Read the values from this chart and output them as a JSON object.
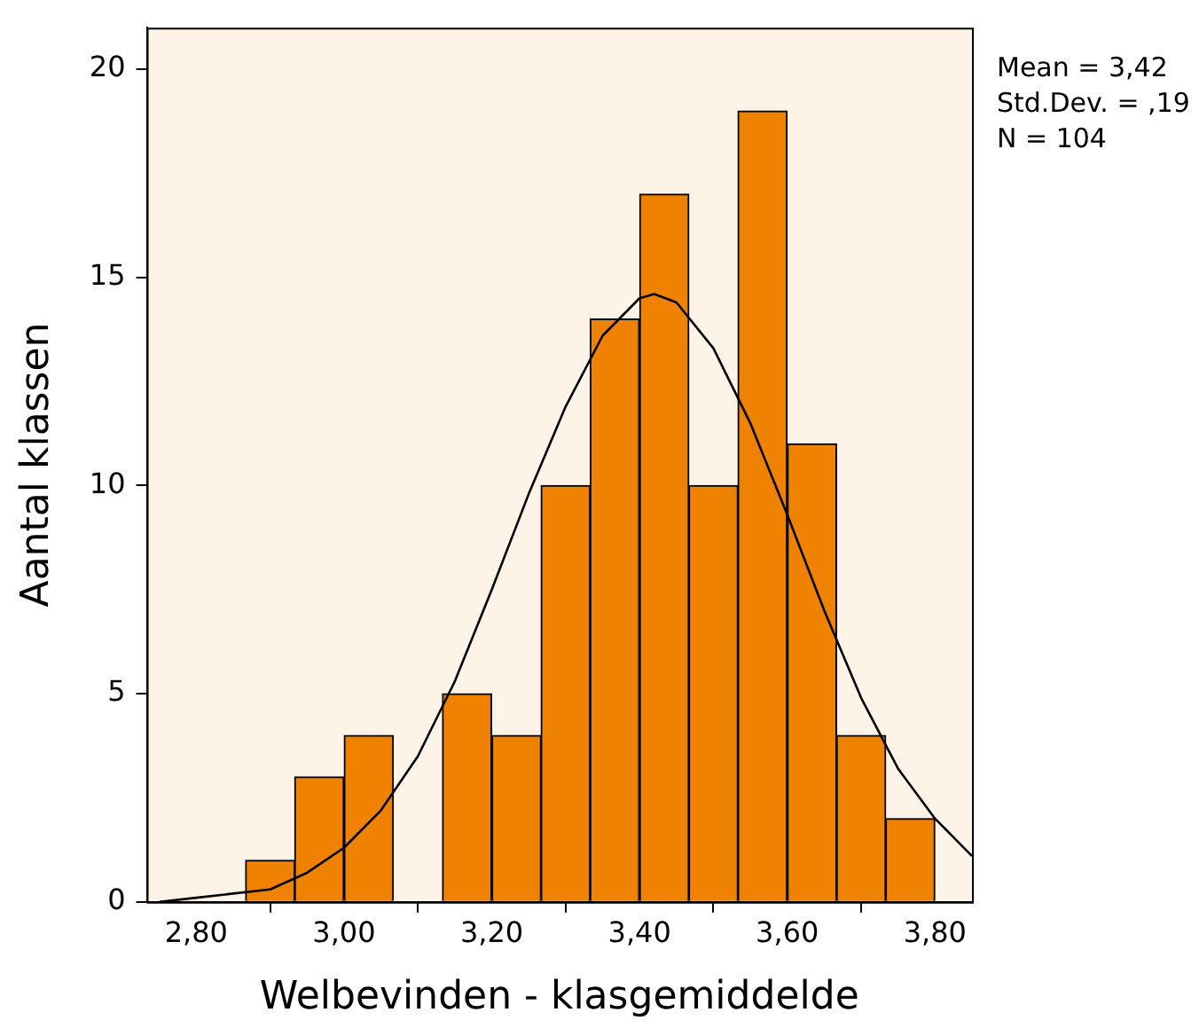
{
  "chart_data": {
    "type": "histogram",
    "xlabel": "Welbevinden - klasgemiddelde",
    "ylabel": "Aantal klassen",
    "bins": [
      2.867,
      2.933,
      3.0,
      3.067,
      3.133,
      3.2,
      3.267,
      3.333,
      3.4,
      3.467,
      3.533,
      3.6,
      3.667,
      3.733,
      3.8
    ],
    "values": [
      1,
      3,
      4,
      0,
      5,
      4,
      10,
      14,
      17,
      10,
      19,
      11,
      4,
      2
    ],
    "color": "#ef8200",
    "series": [
      {
        "type": "line",
        "color": "#000000",
        "x": [
          2.75,
          2.8,
          2.85,
          2.9,
          2.95,
          3.0,
          3.05,
          3.1,
          3.15,
          3.2,
          3.25,
          3.3,
          3.35,
          3.4,
          3.42,
          3.45,
          3.5,
          3.55,
          3.6,
          3.65,
          3.7,
          3.75,
          3.8,
          3.85
        ],
        "values": [
          0.0,
          0.1,
          0.2,
          0.3,
          0.7,
          1.3,
          2.2,
          3.5,
          5.3,
          7.5,
          9.8,
          11.9,
          13.6,
          14.5,
          14.6,
          14.4,
          13.3,
          11.5,
          9.3,
          7.0,
          4.9,
          3.2,
          2.0,
          1.1
        ]
      }
    ],
    "xlim": [
      2.733,
      3.85
    ],
    "xticks": [
      {
        "value": 2.8,
        "label": "2,80"
      },
      {
        "value": 3.0,
        "label": "3,00"
      },
      {
        "value": 3.2,
        "label": "3,20"
      },
      {
        "value": 3.4,
        "label": "3,40"
      },
      {
        "value": 3.6,
        "label": "3,60"
      },
      {
        "value": 3.8,
        "label": "3,80"
      }
    ],
    "ylim": [
      0,
      21
    ],
    "yticks": [
      0,
      5,
      10,
      15,
      20
    ],
    "grid": false,
    "legend": false,
    "annotations": [
      "Mean = 3,42",
      "Std.Dev. = ,19",
      "N = 104"
    ]
  }
}
